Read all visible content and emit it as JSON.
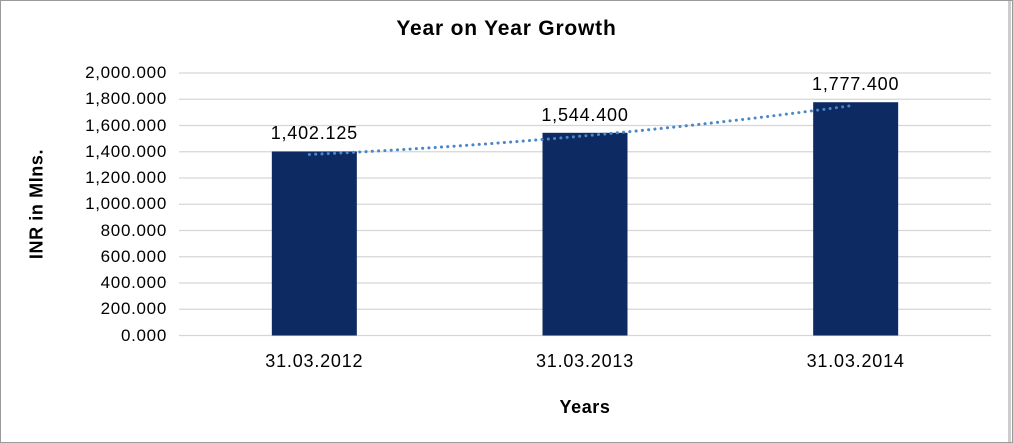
{
  "chart_data": {
    "type": "bar",
    "title": "Year on Year Growth",
    "xlabel": "Years",
    "ylabel": "INR in Mlns.",
    "categories": [
      "31.03.2012",
      "31.03.2013",
      "31.03.2014"
    ],
    "values": [
      1402.125,
      1544.4,
      1777.4
    ],
    "data_labels": [
      "1,402.125",
      "1,544.400",
      "1,777.400"
    ],
    "series_name": "INR in Mlns.",
    "ylim": [
      0,
      2000
    ],
    "ytick_values": [
      2000,
      1800,
      1600,
      1400,
      1200,
      1000,
      800,
      600,
      400,
      200,
      0
    ],
    "ytick_labels": [
      "2,000.000",
      "1,800.000",
      "1,600.000",
      "1,400.000",
      "1,200.000",
      "1,000.000",
      "800.000",
      "600.000",
      "400.000",
      "200.000",
      "0.000"
    ],
    "grid": true,
    "legend": false,
    "trendline": {
      "style": "dotted",
      "color": "#4A86C8"
    },
    "colors": {
      "bar": "#0E2A63",
      "gridline": "#D6D6D6",
      "text": "#000000",
      "background": "#FFFFFF",
      "frame_border": "#9A9A9A"
    }
  }
}
